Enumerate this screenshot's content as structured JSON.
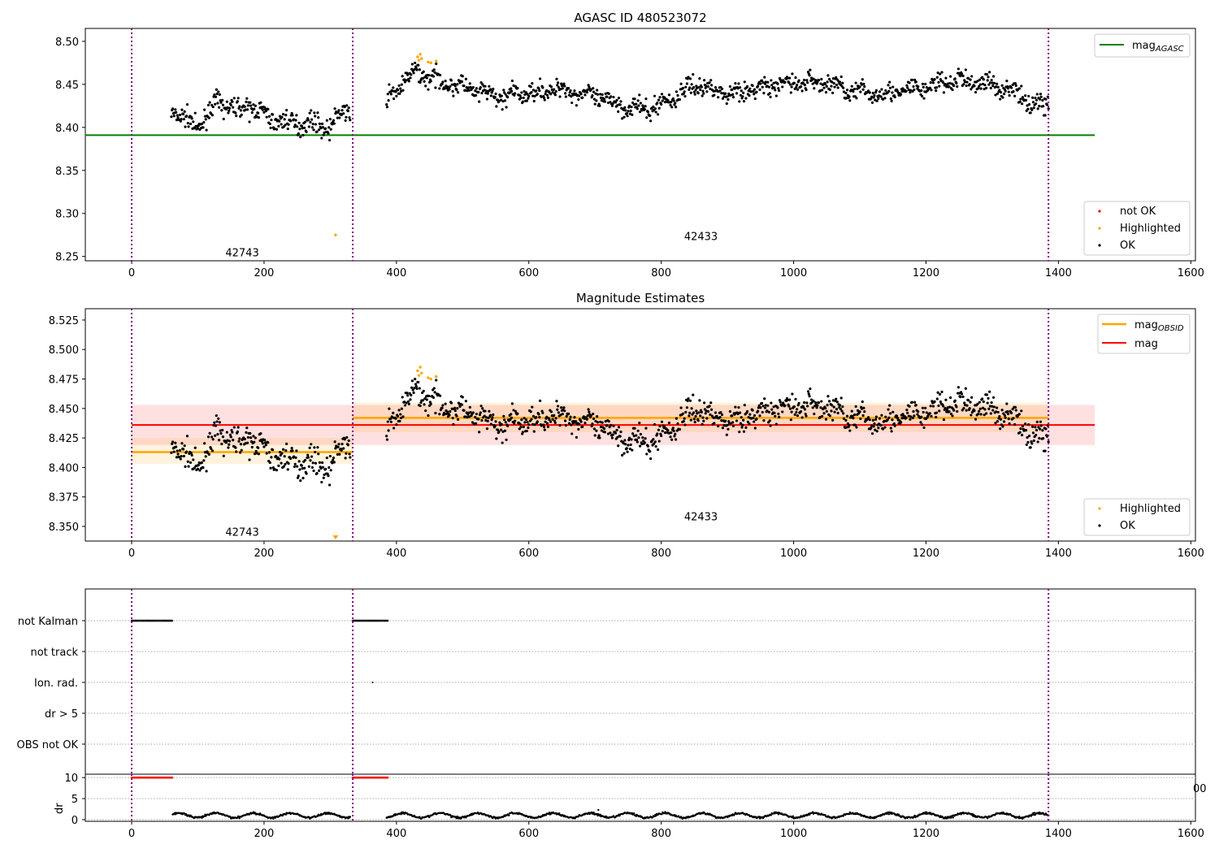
{
  "chart_data": {
    "type": "scatter",
    "title": "AGASC ID 480523072",
    "xlim": [
      -70,
      1607
    ],
    "x_ticks": [
      0,
      200,
      400,
      600,
      800,
      1000,
      1200,
      1400,
      1600
    ],
    "obsid_boundaries": [
      0,
      334,
      1385
    ],
    "obsids": [
      {
        "id": "42743",
        "x_start": 0,
        "x_end": 334,
        "label_x": 167
      },
      {
        "id": "42433",
        "x_start": 334,
        "x_end": 1385,
        "label_x": 860
      }
    ],
    "panels": [
      {
        "title": "AGASC ID 480523072",
        "ylim": [
          8.245,
          8.515
        ],
        "y_ticks": [
          "8.25",
          "8.30",
          "8.35",
          "8.40",
          "8.45",
          "8.50"
        ],
        "obsid_label_y": [
          8.254,
          8.273
        ],
        "lines": [
          {
            "name": "mag_AGASC",
            "label": "mag",
            "sub": "AGASC",
            "value": 8.391,
            "x_start": -70,
            "x_end": 1455,
            "color": "#008000"
          }
        ],
        "legend_lines_position": "upper right",
        "legend_points": [
          {
            "label": "not OK",
            "color": "#ff0000"
          },
          {
            "label": "Highlighted",
            "color": "#ffa500"
          },
          {
            "label": "OK",
            "color": "#000000"
          }
        ],
        "legend_points_position": "lower right"
      },
      {
        "title": "Magnitude Estimates",
        "ylim": [
          8.3376,
          8.5346
        ],
        "y_ticks": [
          "8.350",
          "8.375",
          "8.400",
          "8.425",
          "8.450",
          "8.475",
          "8.500",
          "8.525"
        ],
        "obsid_label_y": [
          8.345,
          8.358
        ],
        "lines": [
          {
            "name": "mag_OBSID",
            "label": "mag",
            "sub": "OBSID",
            "color": "#ffa500",
            "segments": [
              {
                "x_start": 0,
                "x_end": 334,
                "value": 8.413,
                "band": [
                  8.403,
                  8.425
                ]
              },
              {
                "x_start": 334,
                "x_end": 1385,
                "value": 8.442,
                "band": [
                  8.43,
                  8.455
                ]
              }
            ]
          },
          {
            "name": "mag",
            "label": "mag",
            "color": "#ff0000",
            "x_start": 0,
            "x_end": 1455,
            "value": 8.436,
            "band": [
              8.419,
              8.453
            ]
          }
        ],
        "legend_points": [
          {
            "label": "Highlighted",
            "color": "#ffa500"
          },
          {
            "label": "OK",
            "color": "#000000"
          }
        ]
      }
    ],
    "mag_trend": {
      "noise_sd": 0.0055,
      "segments": [
        {
          "x": [
            60,
            80,
            100,
            130,
            160,
            180,
            210,
            240,
            270,
            300,
            320,
            330
          ],
          "y": [
            8.42,
            8.41,
            8.4,
            8.43,
            8.42,
            8.425,
            8.41,
            8.405,
            8.405,
            8.4,
            8.42,
            8.415
          ]
        },
        {
          "x": [
            385,
            400,
            430,
            460,
            500,
            550,
            600,
            650,
            700,
            750,
            780,
            820,
            850,
            900,
            950,
            1000,
            1050,
            1100,
            1150,
            1200,
            1250,
            1300,
            1340,
            1360,
            1385
          ],
          "y": [
            8.43,
            8.445,
            8.465,
            8.455,
            8.447,
            8.435,
            8.44,
            8.445,
            8.435,
            8.424,
            8.42,
            8.435,
            8.45,
            8.44,
            8.445,
            8.452,
            8.452,
            8.44,
            8.44,
            8.447,
            8.455,
            8.45,
            8.44,
            8.425,
            8.43
          ]
        }
      ]
    },
    "highlighted_points": [
      {
        "x": 432,
        "y": 8.482
      },
      {
        "x": 434,
        "y": 8.478
      },
      {
        "x": 436,
        "y": 8.485
      },
      {
        "x": 438,
        "y": 8.48
      },
      {
        "x": 448,
        "y": 8.476
      },
      {
        "x": 452,
        "y": 8.475
      },
      {
        "x": 460,
        "y": 8.477
      },
      {
        "x": 308,
        "y": 8.275
      }
    ],
    "flags_panel": {
      "categories": [
        "not Kalman",
        "not track",
        "Ion. rad.",
        "dr > 5",
        "OBS not OK"
      ],
      "not_kalman_ranges": [
        [
          0,
          62
        ],
        [
          334,
          387
        ]
      ],
      "ion_rad_points": [
        364
      ]
    },
    "dr_panel": {
      "ylabel": "dr",
      "ylim": [
        -0.4,
        10.8
      ],
      "y_ticks": [
        "0",
        "5",
        "10"
      ],
      "red_ranges_at_10": [
        [
          0,
          62
        ],
        [
          334,
          387
        ]
      ],
      "black_segments": [
        [
          62,
          330
        ],
        [
          385,
          1385
        ]
      ],
      "typical_dr": 1.0,
      "outlier": {
        "x": 705,
        "y": 2.3
      },
      "clipped_label": "00"
    }
  }
}
